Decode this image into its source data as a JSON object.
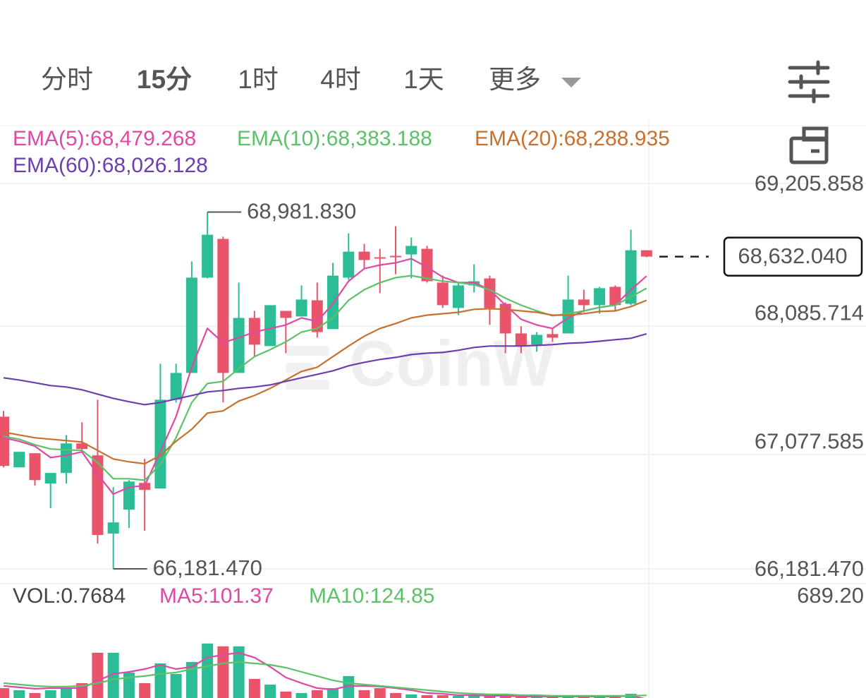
{
  "toolbar": {
    "tabs": [
      "分时",
      "15分",
      "1时",
      "4时",
      "1天",
      "更多"
    ],
    "active": 1
  },
  "watermark": "CoinW",
  "chart_data": [
    {
      "type": "candlestick",
      "open": [
        67376,
        66978,
        67089,
        66851,
        66934,
        67166,
        67072,
        66458,
        66646,
        66856,
        66812,
        67509,
        67719,
        68467,
        68771,
        67719,
        68151,
        67930,
        68206,
        68162,
        68289,
        68063,
        68467,
        68671,
        68627,
        68638,
        68649,
        68693,
        68428,
        68229,
        68406,
        68461,
        68262,
        68029,
        67941,
        68024,
        68029,
        68295,
        68251,
        68395,
        68262,
        68682
      ],
      "high": [
        67421,
        67100,
        67089,
        66934,
        67232,
        67332,
        67509,
        66823,
        66878,
        67044,
        67791,
        67791,
        68594,
        68981.83,
        68788,
        68428,
        68206,
        68251,
        68206,
        68406,
        68428,
        68583,
        68815,
        68732,
        68693,
        68871,
        68782,
        68716,
        68483,
        68428,
        68572,
        68483,
        68273,
        68085,
        68040,
        68063,
        68483,
        68372,
        68395,
        68406,
        68843,
        68682
      ],
      "low": [
        66978,
        66978,
        66834,
        66657,
        66851,
        67100,
        66380,
        66181.47,
        66502,
        66480,
        66812,
        67487,
        67719,
        68461,
        67487,
        67719,
        67847,
        67930,
        67874,
        68162,
        67996,
        68063,
        68450,
        68538,
        68345,
        68494,
        68461,
        68428,
        68229,
        68173,
        68350,
        68096,
        67874,
        67874,
        67885,
        67963,
        68029,
        68195,
        68184,
        68206,
        68251,
        68627
      ],
      "close": [
        66989,
        67100,
        66878,
        66934,
        67166,
        67122,
        66447,
        66546,
        66867,
        66801,
        67509,
        67719,
        68467,
        68804,
        67719,
        68151,
        67941,
        68251,
        68151,
        68295,
        68040,
        68483,
        68671,
        68605,
        68616,
        68627,
        68716,
        68439,
        68251,
        68406,
        68439,
        68229,
        68029,
        67930,
        68018,
        67996,
        68295,
        68251,
        68384,
        68251,
        68682,
        68632.04
      ],
      "up_color": "#2dbd96",
      "down_color": "#e9546b",
      "overlays": [
        {
          "name": "EMA(5):68,479.268",
          "color": "#dd4aa6",
          "values": [
            67210,
            67183,
            67144,
            67055,
            67072,
            67100,
            66923,
            66768,
            66823,
            66834,
            67100,
            67376,
            67764,
            68068,
            67957,
            67996,
            68040,
            68068,
            68096,
            68151,
            68123,
            68262,
            68439,
            68538,
            68566,
            68583,
            68616,
            68550,
            68472,
            68428,
            68428,
            68372,
            68251,
            68140,
            68096,
            68068,
            68151,
            68206,
            68234,
            68251,
            68372,
            68479.268
          ]
        },
        {
          "name": "EMA(10):68,383.188",
          "color": "#5cc26a",
          "values": [
            67221,
            67199,
            67155,
            67122,
            67116,
            67111,
            67017,
            66889,
            66889,
            66878,
            67000,
            67210,
            67487,
            67636,
            67653,
            67753,
            67847,
            67902,
            67963,
            68040,
            68068,
            68151,
            68289,
            68372,
            68428,
            68467,
            68483,
            68461,
            68439,
            68428,
            68411,
            68372,
            68306,
            68251,
            68206,
            68168,
            68184,
            68206,
            68234,
            68251,
            68317,
            68383.188
          ]
        },
        {
          "name": "EMA(20):68,288.935",
          "color": "#c8702e",
          "values": [
            67255,
            67232,
            67210,
            67199,
            67188,
            67177,
            67111,
            67044,
            67022,
            67006,
            67072,
            67183,
            67277,
            67404,
            67421,
            67498,
            67542,
            67598,
            67664,
            67731,
            67764,
            67847,
            67930,
            68007,
            68068,
            68107,
            68151,
            68173,
            68184,
            68195,
            68218,
            68223,
            68218,
            68206,
            68195,
            68173,
            68173,
            68184,
            68201,
            68206,
            68240,
            68288.935
          ]
        },
        {
          "name": "EMA(60):68,026.128",
          "color": "#6b3fb0",
          "values": [
            67681,
            67664,
            67642,
            67620,
            67609,
            67587,
            67553,
            67520,
            67493,
            67470,
            67487,
            67515,
            67542,
            67570,
            67581,
            67598,
            67609,
            67625,
            67653,
            67681,
            67708,
            67736,
            67775,
            67802,
            67825,
            67841,
            67863,
            67874,
            67880,
            67897,
            67919,
            67930,
            67930,
            67930,
            67935,
            67941,
            67952,
            67957,
            67968,
            67980,
            67991,
            68026.128
          ]
        }
      ],
      "ylim": [
        66181.47,
        69205.858
      ],
      "yticks": [
        {
          "value": 66181.47,
          "label": "66,181.470"
        },
        {
          "value": 67077.585,
          "label": "67,077.585"
        },
        {
          "value": 68085.714,
          "label": "68,085.714"
        },
        {
          "value": 69205.858,
          "label": "69,205.858"
        }
      ],
      "grid": true,
      "annotations": [
        {
          "value": 68981.83,
          "label": "68,981.830"
        },
        {
          "value": 66181.47,
          "label": "66,181.470"
        }
      ],
      "last_price": {
        "value": 68632.04,
        "label": "68,632.040"
      }
    },
    {
      "type": "bar",
      "name": "VOL:0.7684",
      "values": [
        171,
        158,
        140,
        158,
        171,
        203,
        397,
        397,
        271,
        203,
        329,
        262,
        338,
        456,
        438,
        438,
        230,
        194,
        149,
        140,
        158,
        171,
        248,
        158,
        171,
        140,
        131,
        126,
        126,
        122,
        122,
        126,
        117,
        113,
        113,
        113,
        122,
        113,
        113,
        113,
        135,
        0.7684
      ],
      "series": [
        {
          "name": "MA5:101.37",
          "color": "#dd4aa6",
          "values": [
            185,
            176,
            167,
            171,
            171,
            171,
            217,
            262,
            275,
            293,
            320,
            293,
            307,
            366,
            384,
            397,
            366,
            307,
            239,
            203,
            171,
            162,
            185,
            185,
            181,
            171,
            158,
            140,
            135,
            126,
            126,
            122,
            122,
            117,
            117,
            117,
            117,
            117,
            117,
            117,
            122,
            101.37
          ]
        },
        {
          "name": "MA10:124.85",
          "color": "#5cc26a",
          "values": [
            203,
            194,
            185,
            181,
            181,
            185,
            203,
            226,
            239,
            248,
            262,
            271,
            293,
            311,
            329,
            338,
            329,
            320,
            302,
            275,
            248,
            221,
            203,
            194,
            185,
            176,
            167,
            158,
            149,
            140,
            135,
            131,
            131,
            126,
            126,
            122,
            122,
            122,
            122,
            122,
            122,
            124.85
          ]
        }
      ],
      "ylim": [
        0,
        689.2
      ],
      "yticks": [
        {
          "value": 689.2,
          "label": "689.20"
        }
      ]
    }
  ]
}
